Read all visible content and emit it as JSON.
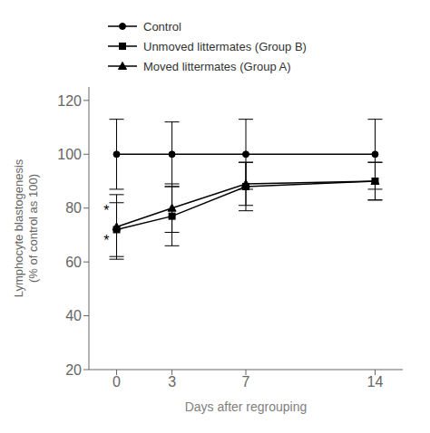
{
  "chart_data": {
    "type": "line",
    "x": [
      0,
      3,
      7,
      14
    ],
    "series": [
      {
        "name": "Control",
        "color": "#000000",
        "marker": "circle",
        "line_style": "solid",
        "values": [
          100,
          100,
          100,
          100
        ],
        "yerr": [
          13,
          12,
          13,
          13
        ]
      },
      {
        "name": "Unmoved littermates (Group B)",
        "color": "#000000",
        "marker": "square",
        "line_style": "solid",
        "values": [
          72,
          77,
          88,
          90
        ],
        "yerr": [
          10,
          11,
          9,
          7
        ]
      },
      {
        "name": "Moved littermates (Group A)",
        "color": "#000000",
        "marker": "triangle",
        "line_style": "solid",
        "values": [
          73,
          80,
          89,
          90
        ],
        "yerr": [
          12,
          9,
          8,
          7
        ]
      }
    ],
    "xlabel": "Days after regrouping",
    "ylabel": "Lymphocyte blastogenesis\n(% of control as 100)",
    "xlim": [
      -1.5,
      15.5
    ],
    "xticks": [
      0,
      3,
      7,
      14
    ],
    "ylim": [
      20,
      125
    ],
    "yticks": [
      20,
      40,
      60,
      80,
      100,
      120
    ],
    "annotations": [
      {
        "x": -0.55,
        "y": 79,
        "text": "*",
        "color": "#000000"
      },
      {
        "x": -0.55,
        "y": 68,
        "text": "*",
        "color": "#000000"
      }
    ],
    "legend": "top",
    "grid": false
  }
}
